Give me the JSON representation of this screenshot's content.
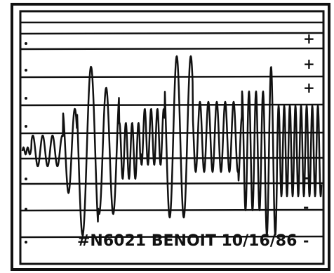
{
  "caption": "#N6021 BENOIT 10/16/86",
  "right_marks": [
    "+",
    "+",
    "+",
    "-",
    "-",
    "-"
  ]
}
